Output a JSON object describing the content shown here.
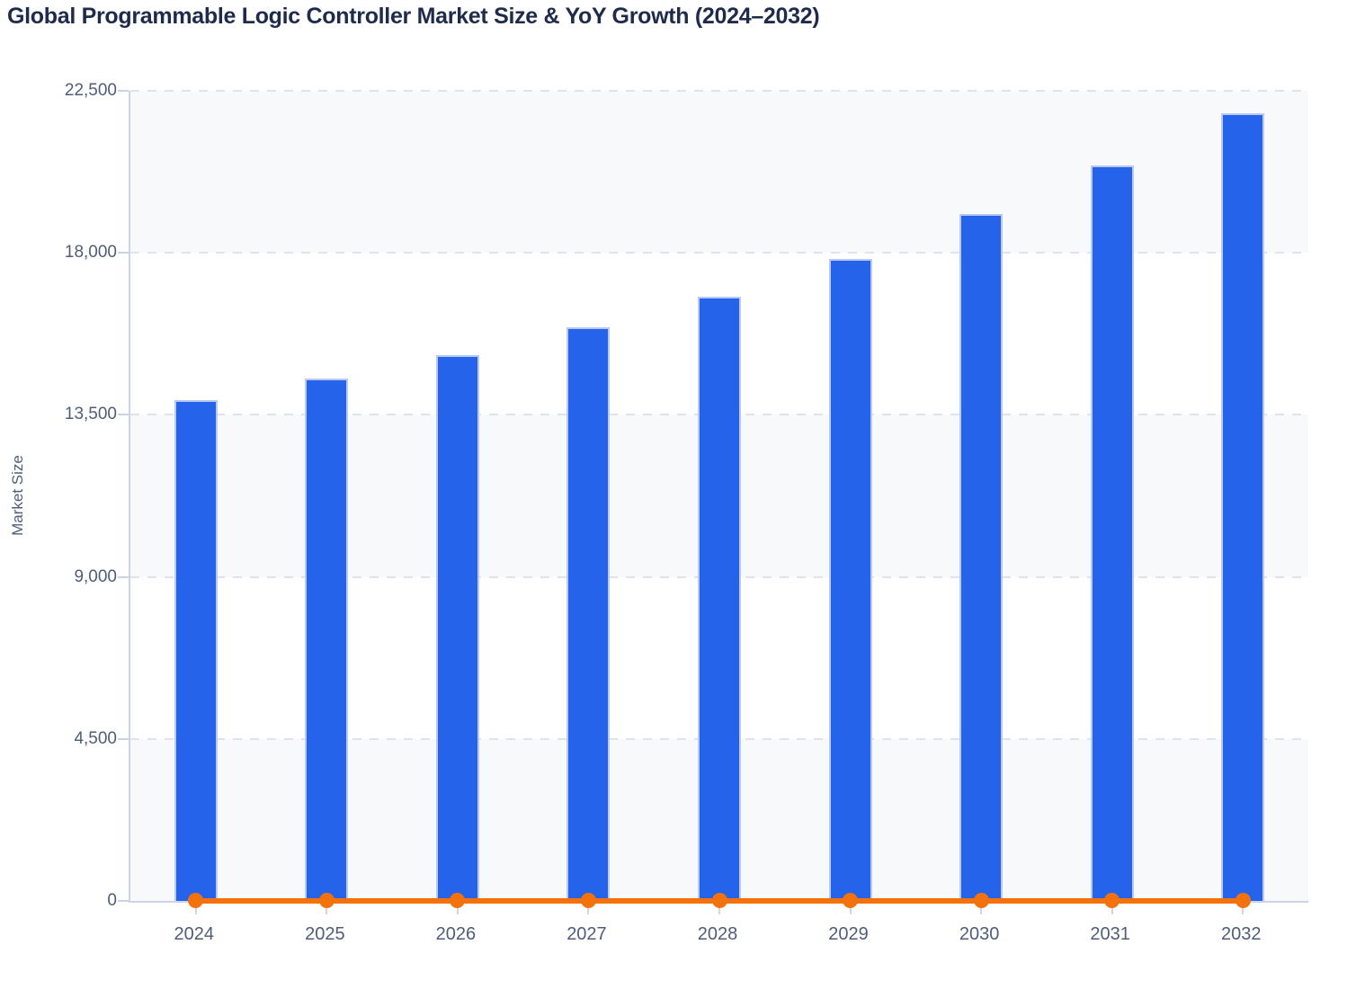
{
  "page": {
    "title": "Global Programmable Logic Controller Market Size & YoY Growth (2024–2032)"
  },
  "chart_data": {
    "type": "bar",
    "title": "Global Programmable Logic Controller Market Size & YoY Growth (2024–2032)",
    "categories": [
      "2024",
      "2025",
      "2026",
      "2027",
      "2028",
      "2029",
      "2030",
      "2031",
      "2032"
    ],
    "series": [
      {
        "name": "Market Size",
        "type": "bar",
        "color": "#2563eb",
        "values": [
          13900,
          14500,
          15150,
          15925,
          16790,
          17820,
          19070,
          20420,
          21870
        ]
      },
      {
        "name": "YoY Growth",
        "type": "line",
        "color": "#f4720c",
        "values": [
          0,
          0,
          0,
          0,
          0,
          0,
          0,
          0,
          0
        ]
      }
    ],
    "xlabel": "",
    "ylabel": "Market Size",
    "ylim": [
      0,
      22500
    ],
    "yticks": [
      0,
      4500,
      9000,
      13500,
      18000,
      22500
    ],
    "ytick_labels": [
      "0",
      "4,500",
      "9,000",
      "13,500",
      "18,000",
      "22,500"
    ],
    "grid": "horizontal-dashed",
    "legend": "none",
    "plot_band_colors": [
      "#f8f9fb",
      "#ffffff"
    ]
  },
  "colors": {
    "title_text": "#1f2b4b",
    "axis_text": "#4f5d7a",
    "bar_fill": "#2563eb",
    "bar_border": "#b9c9f2",
    "line_orange": "#f4720c",
    "gridline": "#e0e3ec",
    "axis_line": "#c9d4ec",
    "band_gray": "#f8f9fb"
  }
}
